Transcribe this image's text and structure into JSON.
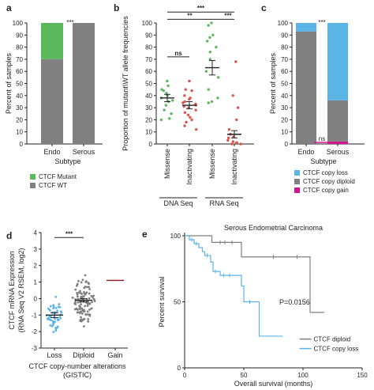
{
  "chart_data": [
    {
      "panel": "a",
      "type": "bar",
      "stacked": true,
      "ylabel": "Percent of samples",
      "xlabel": "Subtype",
      "ylim": [
        0,
        100
      ],
      "yticks": [
        0,
        10,
        20,
        30,
        40,
        50,
        60,
        70,
        80,
        90,
        100
      ],
      "categories": [
        "Endo",
        "Serous"
      ],
      "series": [
        {
          "name": "CTCF WT",
          "color": "#808080",
          "values": [
            70,
            100
          ]
        },
        {
          "name": "CTCF Mutant",
          "color": "#5cb85c",
          "values": [
            30,
            0
          ]
        }
      ],
      "annotations": [
        "***"
      ],
      "legend": "bottom"
    },
    {
      "panel": "b",
      "type": "scatter",
      "ylabel": "Proportion of mutant\\WT allele frequencies",
      "ylim": [
        0,
        100
      ],
      "yticks": [
        0,
        10,
        20,
        30,
        40,
        50,
        60,
        70,
        80,
        90,
        100
      ],
      "categories": [
        "Missense",
        "Inactivating",
        "Missense",
        "Inactivating"
      ],
      "groups": [
        "DNA Seq",
        "RNA Seq"
      ],
      "means": [
        38,
        32,
        63,
        8
      ],
      "errors": [
        3,
        3,
        6,
        3
      ],
      "colors": [
        "#5cb85c",
        "#d9534f",
        "#5cb85c",
        "#d9534f"
      ],
      "points": [
        [
          52,
          48,
          45,
          44,
          42,
          40,
          38,
          36,
          35,
          32,
          28,
          25,
          21,
          20
        ],
        [
          52,
          45,
          44,
          40,
          38,
          37,
          35,
          34,
          33,
          32,
          31,
          30,
          28,
          26,
          24,
          22,
          20,
          18,
          15,
          12
        ],
        [
          100,
          98,
          90,
          88,
          85,
          80,
          76,
          70,
          60,
          55,
          45,
          38,
          35,
          34
        ],
        [
          68,
          40,
          30,
          20,
          12,
          8,
          6,
          5,
          3,
          2,
          1,
          1,
          0,
          0
        ]
      ],
      "comparisons": [
        {
          "pair": [
            0,
            1
          ],
          "label": "ns"
        },
        {
          "pair": [
            0,
            2
          ],
          "label": "**"
        },
        {
          "pair": [
            2,
            3
          ],
          "label": "***"
        },
        {
          "pair": [
            0,
            3
          ],
          "label": "***"
        }
      ]
    },
    {
      "panel": "c",
      "type": "bar",
      "stacked": true,
      "ylabel": "Percent of samples",
      "xlabel": "Subtype",
      "ylim": [
        0,
        100
      ],
      "yticks": [
        0,
        10,
        20,
        30,
        40,
        50,
        60,
        70,
        80,
        90,
        100
      ],
      "categories": [
        "Endo",
        "Serous"
      ],
      "series": [
        {
          "name": "CTCF copy gain",
          "color": "#d4148c",
          "values": [
            0,
            2
          ]
        },
        {
          "name": "CTCF copy diploid",
          "color": "#808080",
          "values": [
            93,
            34
          ]
        },
        {
          "name": "CTCF copy loss",
          "color": "#5bb4e6",
          "values": [
            7,
            64
          ]
        }
      ],
      "annotations": [
        "***",
        "ns"
      ],
      "legend": "bottom"
    },
    {
      "panel": "d",
      "type": "scatter",
      "ylabel": "CTCF mRNA Expression (RNA Seq V2 RSEM, log2)",
      "xlabel": "CTCF copy-number alterations (GISTIC)",
      "ylim": [
        -3,
        4
      ],
      "yticks": [
        -3,
        -2,
        -1,
        0,
        1,
        2,
        3,
        4
      ],
      "categories": [
        "Loss",
        "Diploid",
        "Gain"
      ],
      "means": [
        -1.0,
        -0.1,
        1.1
      ],
      "errors": [
        0.15,
        0.1,
        0
      ],
      "colors": [
        "#5bb4e6",
        "#808080",
        "#8b1a1a"
      ],
      "point_counts": [
        50,
        110,
        1
      ],
      "comparisons": [
        {
          "pair": [
            0,
            1
          ],
          "label": "***"
        }
      ]
    },
    {
      "panel": "e",
      "type": "line",
      "title": "Serous Endometrial Carcinoma",
      "xlabel": "Overall survival (months)",
      "ylabel": "Percent survival",
      "xlim": [
        0,
        150
      ],
      "ylim": [
        0,
        100
      ],
      "xticks": [
        0,
        50,
        100,
        150
      ],
      "yticks": [
        0,
        50,
        100
      ],
      "series": [
        {
          "name": "CTCF diploid",
          "color": "#808080",
          "x": [
            0,
            23,
            23,
            48,
            48,
            106,
            106,
            118
          ],
          "y": [
            100,
            100,
            95,
            95,
            84,
            84,
            42,
            42
          ]
        },
        {
          "name": "CTCF copy loss",
          "color": "#5bb4e6",
          "x": [
            0,
            4,
            4,
            8,
            8,
            12,
            12,
            15,
            15,
            17,
            17,
            22,
            22,
            24,
            24,
            30,
            30,
            48,
            48,
            50,
            50,
            63,
            63,
            83
          ],
          "y": [
            100,
            100,
            97,
            97,
            94,
            94,
            91,
            91,
            88,
            88,
            85,
            85,
            80,
            80,
            73,
            73,
            70,
            70,
            62,
            62,
            50,
            50,
            24,
            24
          ]
        }
      ],
      "censored": [
        {
          "series": 0,
          "x": [
            30,
            34,
            40,
            75,
            95
          ]
        },
        {
          "series": 1,
          "x": [
            6,
            10,
            19,
            26,
            33,
            38,
            55
          ]
        }
      ],
      "annotations": [
        "P=0.0156"
      ],
      "legend": "bottom-right"
    }
  ]
}
